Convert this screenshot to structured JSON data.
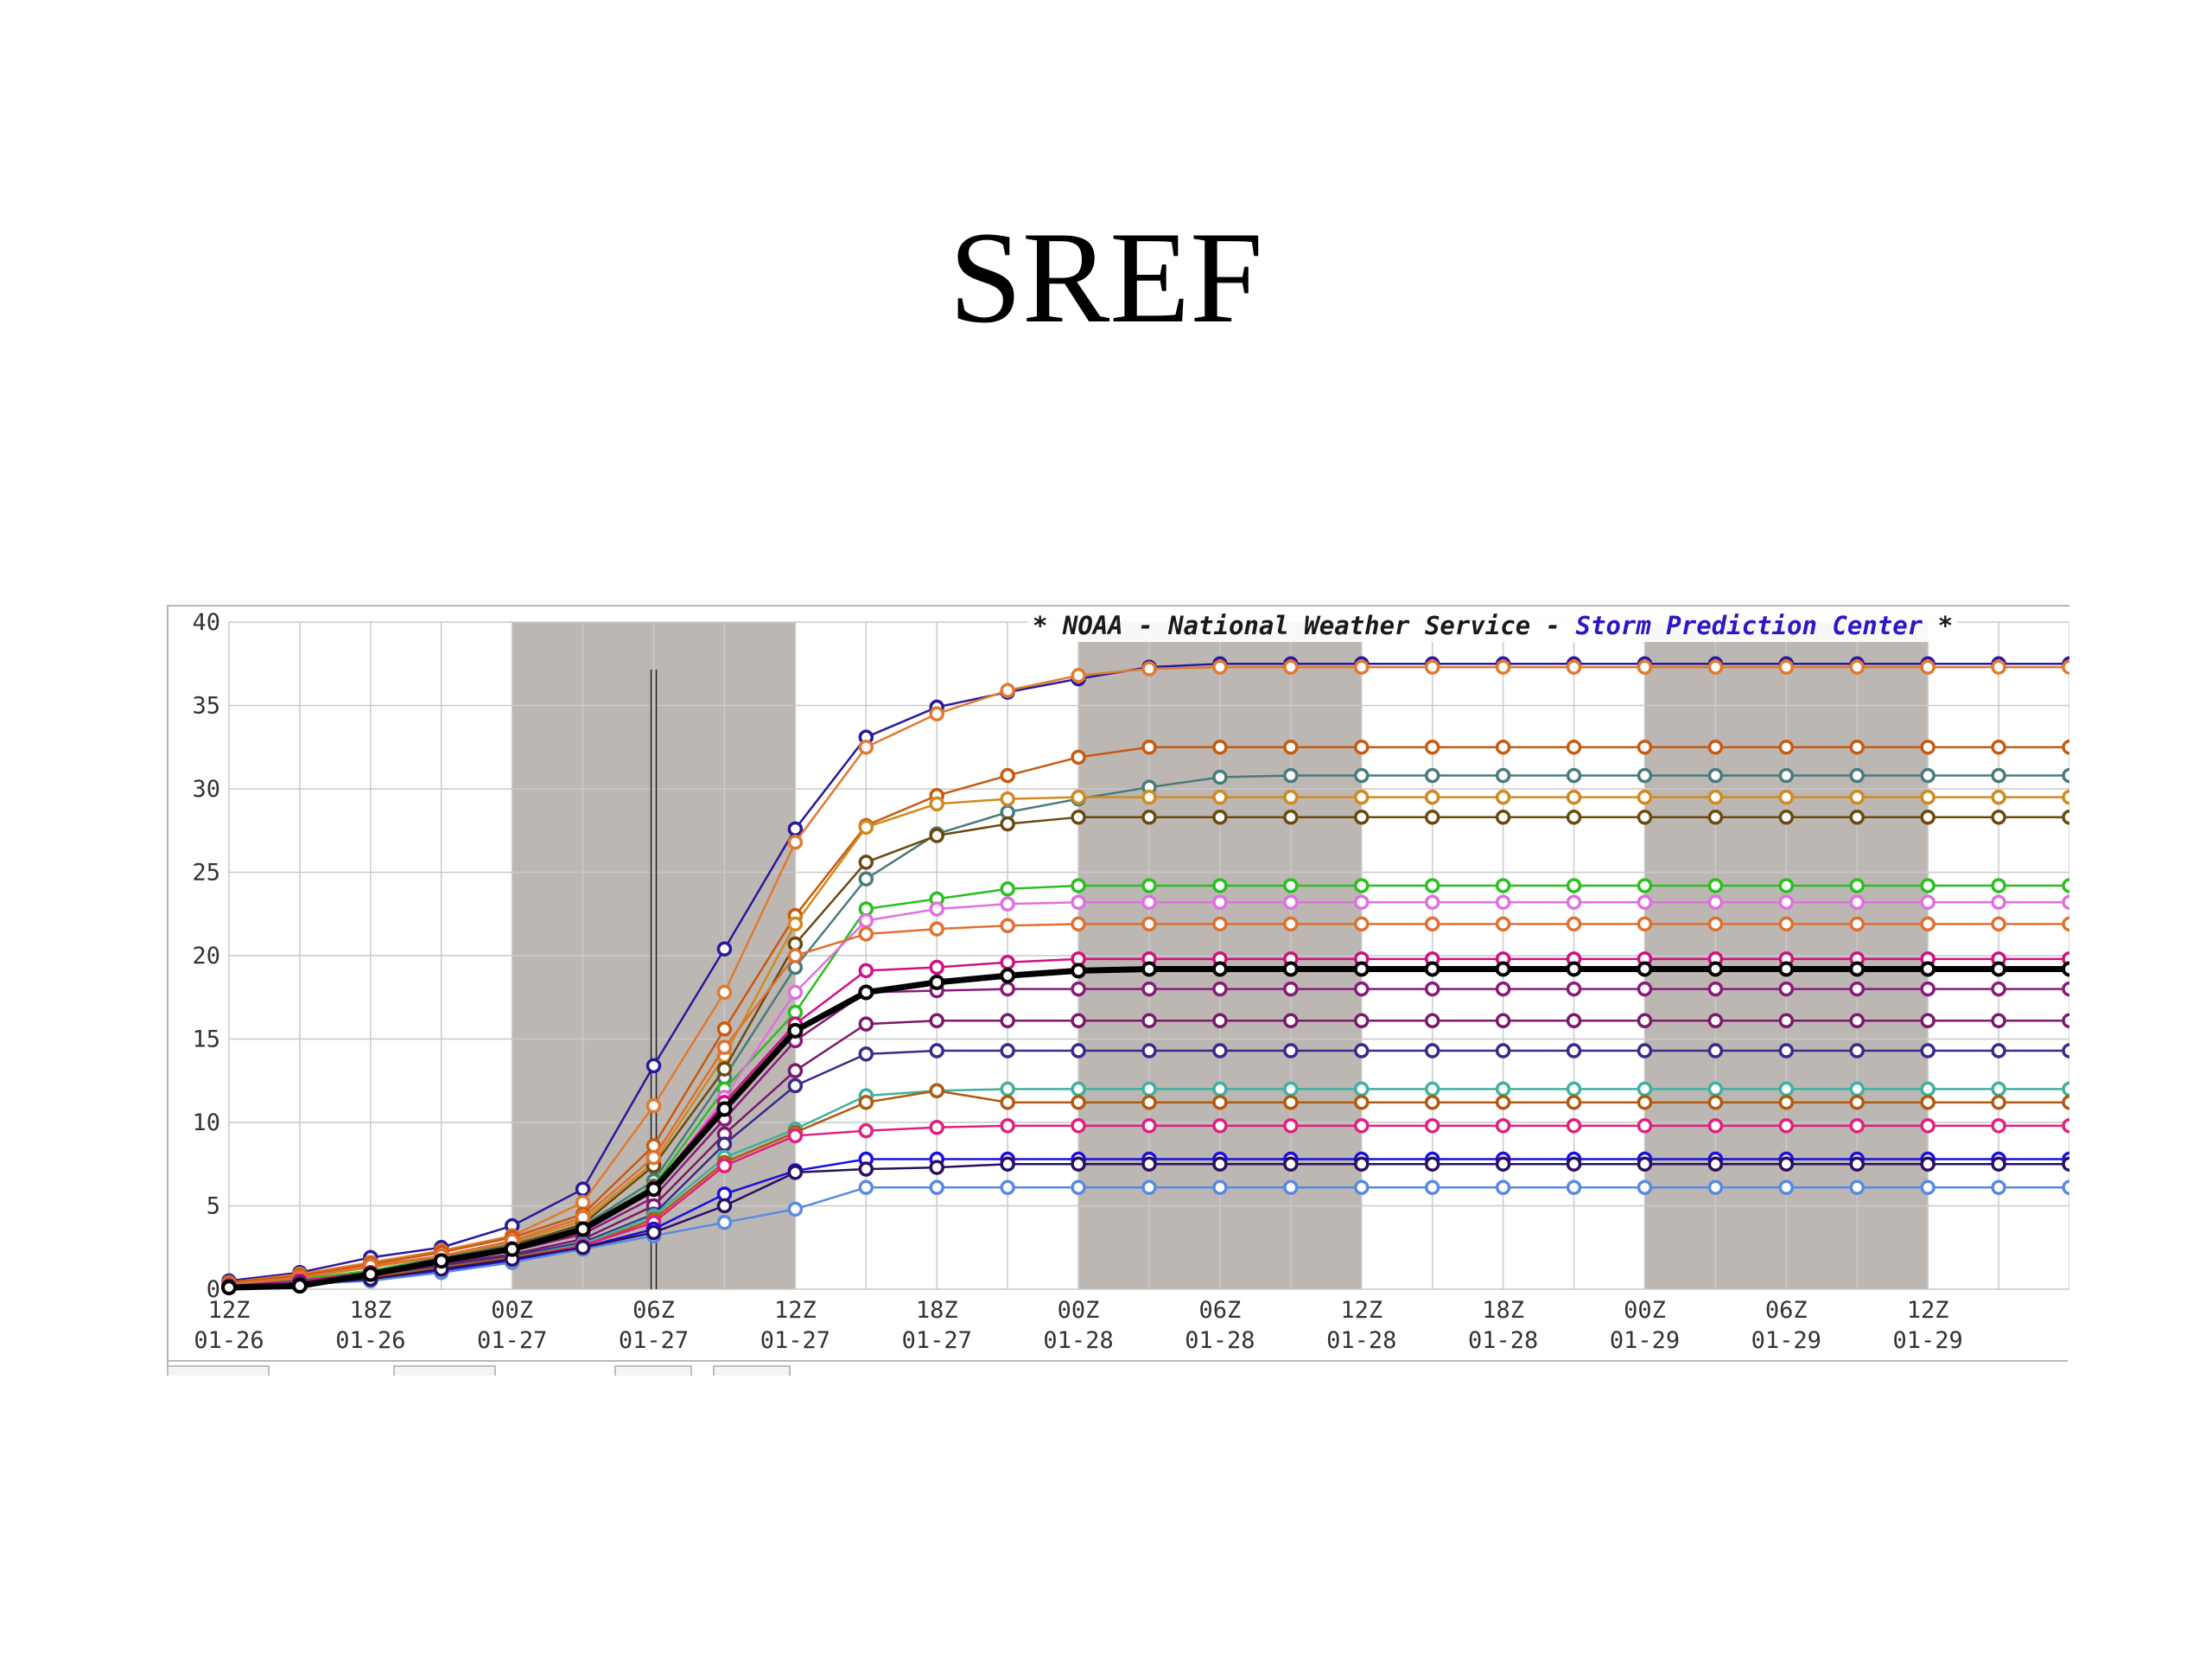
{
  "slide": {
    "title": "SREF"
  },
  "chart_data": {
    "type": "line",
    "banner": {
      "prefix": "* NOAA - National Weather Service - ",
      "highlight": "Storm Prediction Center",
      "suffix": " *",
      "highlight_color": "#2a19c4"
    },
    "ylim": [
      0,
      40
    ],
    "y_ticks": [
      0,
      5,
      10,
      15,
      20,
      25,
      30,
      35,
      40
    ],
    "x_ticks": [
      {
        "time": "12Z",
        "date": "01-26"
      },
      {
        "time": "18Z",
        "date": "01-26"
      },
      {
        "time": "00Z",
        "date": "01-27"
      },
      {
        "time": "06Z",
        "date": "01-27"
      },
      {
        "time": "12Z",
        "date": "01-27"
      },
      {
        "time": "18Z",
        "date": "01-27"
      },
      {
        "time": "00Z",
        "date": "01-28"
      },
      {
        "time": "06Z",
        "date": "01-28"
      },
      {
        "time": "12Z",
        "date": "01-28"
      },
      {
        "time": "18Z",
        "date": "01-28"
      },
      {
        "time": "00Z",
        "date": "01-29"
      },
      {
        "time": "06Z",
        "date": "01-29"
      },
      {
        "time": "12Z",
        "date": "01-29"
      }
    ],
    "x_hours_range": [
      0,
      78
    ],
    "night_bands_hours": [
      [
        12,
        24
      ],
      [
        36,
        48
      ],
      [
        60,
        72
      ]
    ],
    "current_time_hour": 18,
    "member_colors": [
      "#2a1a9a",
      "#e07a30",
      "#c85a10",
      "#4a7a7a",
      "#d08a20",
      "#6a4a10",
      "#2ac020",
      "#e070e0",
      "#e07030",
      "#d01080",
      "#8a1a7a",
      "#7a1a6a",
      "#3a2a8a",
      "#40b0a0",
      "#b05a10",
      "#e02080",
      "#1a10e0",
      "#5a8ae0",
      "#2a1060"
    ],
    "series": [
      {
        "values": [
          0.5,
          1.0,
          1.9,
          2.5,
          3.8,
          6.0,
          13.4,
          20.4,
          27.6,
          33.1,
          34.9,
          35.8,
          36.6,
          37.3,
          37.5,
          37.5,
          37.5,
          37.5,
          37.5,
          37.5,
          37.5,
          37.5,
          37.5,
          37.5,
          37.5,
          37.5,
          37.5
        ]
      },
      {
        "values": [
          0.4,
          0.9,
          1.6,
          2.3,
          3.2,
          5.2,
          11.0,
          17.8,
          26.8,
          32.5,
          34.5,
          35.9,
          36.8,
          37.2,
          37.3,
          37.3,
          37.3,
          37.3,
          37.3,
          37.3,
          37.3,
          37.3,
          37.3,
          37.3,
          37.3,
          37.3,
          37.3
        ]
      },
      {
        "values": [
          0.4,
          0.8,
          1.5,
          2.2,
          3.1,
          4.5,
          8.6,
          15.6,
          22.4,
          27.8,
          29.6,
          30.8,
          31.9,
          32.5,
          32.5,
          32.5,
          32.5,
          32.5,
          32.5,
          32.5,
          32.5,
          32.5,
          32.5,
          32.5,
          32.5,
          32.5,
          32.5
        ]
      },
      {
        "values": [
          0.2,
          0.6,
          1.1,
          1.9,
          2.7,
          3.8,
          6.5,
          12.7,
          19.3,
          24.6,
          27.3,
          28.6,
          29.4,
          30.1,
          30.7,
          30.8,
          30.8,
          30.8,
          30.8,
          30.8,
          30.8,
          30.8,
          30.8,
          30.8,
          30.8,
          30.8,
          30.8
        ]
      },
      {
        "values": [
          0.3,
          0.7,
          1.3,
          2.0,
          2.8,
          4.1,
          7.6,
          14.0,
          21.9,
          27.7,
          29.1,
          29.4,
          29.5,
          29.5,
          29.5,
          29.5,
          29.5,
          29.5,
          29.5,
          29.5,
          29.5,
          29.5,
          29.5,
          29.5,
          29.5,
          29.5,
          29.5
        ]
      },
      {
        "values": [
          0.2,
          0.5,
          1.1,
          1.8,
          2.6,
          3.9,
          7.4,
          13.2,
          20.7,
          25.6,
          27.2,
          27.9,
          28.3,
          28.3,
          28.3,
          28.3,
          28.3,
          28.3,
          28.3,
          28.3,
          28.3,
          28.3,
          28.3,
          28.3,
          28.3,
          28.3,
          28.3
        ]
      },
      {
        "values": [
          0.2,
          0.6,
          1.1,
          1.8,
          2.5,
          3.7,
          6.2,
          12.0,
          16.6,
          22.8,
          23.4,
          24.0,
          24.2,
          24.2,
          24.2,
          24.2,
          24.2,
          24.2,
          24.2,
          24.2,
          24.2,
          24.2,
          24.2,
          24.2,
          24.2,
          24.2,
          24.2
        ]
      },
      {
        "values": [
          0.2,
          0.5,
          1.0,
          1.6,
          2.3,
          3.4,
          5.9,
          11.5,
          17.8,
          22.1,
          22.8,
          23.1,
          23.2,
          23.2,
          23.2,
          23.2,
          23.2,
          23.2,
          23.2,
          23.2,
          23.2,
          23.2,
          23.2,
          23.2,
          23.2,
          23.2,
          23.2
        ]
      },
      {
        "values": [
          0.3,
          0.7,
          1.4,
          2.0,
          2.9,
          4.3,
          7.9,
          14.5,
          20.0,
          21.3,
          21.6,
          21.8,
          21.9,
          21.9,
          21.9,
          21.9,
          21.9,
          21.9,
          21.9,
          21.9,
          21.9,
          21.9,
          21.9,
          21.9,
          21.9,
          21.9,
          21.9
        ]
      },
      {
        "values": [
          0.2,
          0.5,
          1.0,
          1.7,
          2.4,
          3.5,
          6.1,
          11.2,
          15.9,
          19.1,
          19.3,
          19.6,
          19.8,
          19.8,
          19.8,
          19.8,
          19.8,
          19.8,
          19.8,
          19.8,
          19.8,
          19.8,
          19.8,
          19.8,
          19.8,
          19.8,
          19.8
        ]
      },
      {
        "values": [
          0.2,
          0.4,
          0.9,
          1.6,
          2.3,
          3.3,
          5.5,
          10.2,
          14.9,
          17.8,
          17.9,
          18.0,
          18.0,
          18.0,
          18.0,
          18.0,
          18.0,
          18.0,
          18.0,
          18.0,
          18.0,
          18.0,
          18.0,
          18.0,
          18.0,
          18.0,
          18.0
        ]
      },
      {
        "values": [
          0.1,
          0.4,
          0.8,
          1.5,
          2.1,
          3.0,
          5.0,
          9.3,
          13.1,
          15.9,
          16.1,
          16.1,
          16.1,
          16.1,
          16.1,
          16.1,
          16.1,
          16.1,
          16.1,
          16.1,
          16.1,
          16.1,
          16.1,
          16.1,
          16.1,
          16.1,
          16.1
        ]
      },
      {
        "values": [
          0.1,
          0.3,
          0.8,
          1.4,
          2.0,
          2.8,
          4.5,
          8.7,
          12.2,
          14.1,
          14.3,
          14.3,
          14.3,
          14.3,
          14.3,
          14.3,
          14.3,
          14.3,
          14.3,
          14.3,
          14.3,
          14.3,
          14.3,
          14.3,
          14.3,
          14.3,
          14.3
        ]
      },
      {
        "values": [
          0.1,
          0.3,
          0.7,
          1.3,
          1.9,
          2.7,
          4.4,
          7.9,
          9.6,
          11.6,
          11.9,
          12.0,
          12.0,
          12.0,
          12.0,
          12.0,
          12.0,
          12.0,
          12.0,
          12.0,
          12.0,
          12.0,
          12.0,
          12.0,
          12.0,
          12.0,
          12.0
        ]
      },
      {
        "values": [
          0.1,
          0.3,
          0.7,
          1.3,
          1.9,
          2.6,
          4.2,
          7.6,
          9.4,
          11.2,
          11.9,
          11.2,
          11.2,
          11.2,
          11.2,
          11.2,
          11.2,
          11.2,
          11.2,
          11.2,
          11.2,
          11.2,
          11.2,
          11.2,
          11.2,
          11.2,
          11.2
        ]
      },
      {
        "values": [
          0.1,
          0.3,
          0.6,
          1.2,
          1.8,
          2.6,
          4.0,
          7.4,
          9.2,
          9.5,
          9.7,
          9.8,
          9.8,
          9.8,
          9.8,
          9.8,
          9.8,
          9.8,
          9.8,
          9.8,
          9.8,
          9.8,
          9.8,
          9.8,
          9.8,
          9.8,
          9.8
        ]
      },
      {
        "values": [
          0.1,
          0.3,
          0.6,
          1.1,
          1.7,
          2.5,
          3.6,
          5.7,
          7.1,
          7.8,
          7.8,
          7.8,
          7.8,
          7.8,
          7.8,
          7.8,
          7.8,
          7.8,
          7.8,
          7.8,
          7.8,
          7.8,
          7.8,
          7.8,
          7.8,
          7.8,
          7.8
        ]
      },
      {
        "values": [
          0.1,
          0.3,
          0.5,
          1.0,
          1.6,
          2.4,
          3.2,
          4.0,
          4.8,
          6.1,
          6.1,
          6.1,
          6.1,
          6.1,
          6.1,
          6.1,
          6.1,
          6.1,
          6.1,
          6.1,
          6.1,
          6.1,
          6.1,
          6.1,
          6.1,
          6.1,
          6.1
        ]
      },
      {
        "values": [
          0.1,
          0.3,
          0.6,
          1.2,
          1.8,
          2.5,
          3.4,
          5.0,
          7.0,
          7.2,
          7.3,
          7.5,
          7.5,
          7.5,
          7.5,
          7.5,
          7.5,
          7.5,
          7.5,
          7.5,
          7.5,
          7.5,
          7.5,
          7.5,
          7.5,
          7.5,
          7.5
        ]
      }
    ],
    "mean": {
      "color": "#000000",
      "values": [
        0.1,
        0.2,
        0.9,
        1.7,
        2.4,
        3.6,
        6.0,
        10.8,
        15.5,
        17.8,
        18.4,
        18.8,
        19.1,
        19.2,
        19.2,
        19.2,
        19.2,
        19.2,
        19.2,
        19.2,
        19.2,
        19.2,
        19.2,
        19.2,
        19.2,
        19.2,
        19.2
      ]
    },
    "grid": true,
    "background_color": "#ffffff",
    "night_band_color": "#bcb7b3"
  }
}
